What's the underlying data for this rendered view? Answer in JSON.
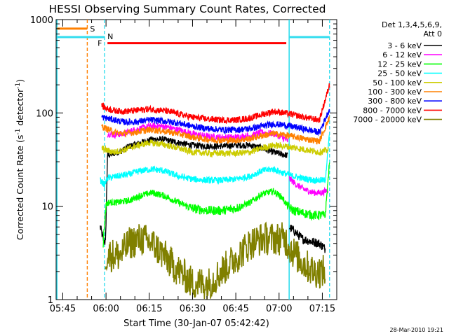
{
  "chart_data": {
    "type": "line",
    "title": "HESSI Observing Summary Count Rates, Corrected",
    "xlabel": "Start Time (30-Jan-07 05:42:42)",
    "ylabel_parts": [
      "Corrected Count Rate (s",
      "-1",
      " detector",
      "-1",
      ")"
    ],
    "x_unit": "UT",
    "xlim": [
      "05:42:42",
      "07:20:00"
    ],
    "ylim": [
      1,
      1000
    ],
    "y_scale": "log",
    "grid": false,
    "x_ticks": [
      "05:45",
      "06:00",
      "06:15",
      "06:30",
      "06:45",
      "07:00",
      "07:15"
    ],
    "y_ticks": [
      1,
      10,
      100,
      1000
    ],
    "y_tick_labels": [
      "1",
      "10",
      "100",
      "1000"
    ],
    "legend_header": [
      "Det 1,3,4,5,6,9,",
      "Att 0"
    ],
    "legend_position": "top-right outside",
    "series": [
      {
        "name": "3 - 6 keV",
        "color": "#000000",
        "segments": [
          {
            "t": [
              "05:58:00",
              "05:59:00",
              "05:59:50",
              "06:00:30",
              "06:02:00",
              "06:04:00",
              "06:06:00",
              "06:08:00",
              "06:12:00",
              "06:16:00",
              "06:20:00",
              "06:25:00",
              "06:30:00",
              "06:35:00",
              "06:40:00",
              "06:45:00",
              "06:50:00",
              "06:54:00",
              "06:58:00",
              "07:01:00",
              "07:03:00"
            ],
            "v": [
              6,
              4.5,
              4,
              35,
              36,
              38,
              40,
              44,
              48,
              52,
              52,
              48,
              45,
              44,
              44,
              45,
              45,
              42,
              38,
              36,
              35
            ]
          },
          {
            "t": [
              "07:03:30",
              "07:05:00",
              "07:08:00",
              "07:11:00",
              "07:14:00",
              "07:16:00"
            ],
            "v": [
              6,
              5.5,
              4.5,
              4.2,
              4,
              3.5
            ]
          }
        ]
      },
      {
        "name": "6 - 12 keV",
        "color": "#ff00ff",
        "segments": [
          {
            "t": [
              "06:00:30",
              "06:03:00",
              "06:06:00",
              "06:10:00",
              "06:15:00",
              "06:20:00",
              "06:25:00",
              "06:30:00",
              "06:35:00",
              "06:40:00",
              "06:45:00",
              "06:50:00",
              "06:54:00",
              "06:58:00",
              "07:01:00",
              "07:03:00"
            ],
            "v": [
              60,
              58,
              60,
              66,
              72,
              72,
              66,
              60,
              56,
              55,
              55,
              57,
              62,
              60,
              55,
              50
            ]
          },
          {
            "t": [
              "07:03:30",
              "07:06:00",
              "07:09:00",
              "07:12:00",
              "07:15:00",
              "07:17:00"
            ],
            "v": [
              20,
              17,
              15,
              14,
              14,
              15
            ]
          }
        ]
      },
      {
        "name": "12 - 25 keV",
        "color": "#00ff00",
        "segments": [
          {
            "t": [
              "05:59:00",
              "06:00:00",
              "06:01:00",
              "06:04:00",
              "06:08:00",
              "06:12:00",
              "06:16:00",
              "06:20:00",
              "06:25:00",
              "06:30:00",
              "06:35:00",
              "06:40:00",
              "06:45:00",
              "06:50:00",
              "06:54:00",
              "06:58:00",
              "07:01:00",
              "07:03:00",
              "07:05:00",
              "07:08:00",
              "07:12:00",
              "07:16:00",
              "07:17:30"
            ],
            "v": [
              4,
              10.5,
              11,
              11,
              11.5,
              13,
              14,
              13,
              11,
              9.5,
              9,
              9,
              9.5,
              11,
              13.5,
              14.5,
              12.5,
              10,
              9,
              8.5,
              8,
              8,
              30
            ]
          }
        ]
      },
      {
        "name": "25 - 50 keV",
        "color": "#00ffff",
        "segments": [
          {
            "t": [
              "05:58:00",
              "05:59:30",
              "06:00:30",
              "06:04:00",
              "06:08:00",
              "06:12:00",
              "06:16:00",
              "06:20:00",
              "06:25:00",
              "06:30:00",
              "06:35:00",
              "06:40:00",
              "06:45:00",
              "06:50:00",
              "06:54:00",
              "06:58:00",
              "07:01:00",
              "07:03:00",
              "07:05:00",
              "07:08:00",
              "07:12:00",
              "07:16:00",
              "07:17:30"
            ],
            "v": [
              19,
              17,
              20,
              21,
              22,
              24,
              25,
              24,
              21,
              19.5,
              19,
              19,
              19.5,
              21,
              24,
              25,
              23,
              22,
              21,
              20,
              19,
              19,
              60
            ]
          }
        ]
      },
      {
        "name": "50 - 100 keV",
        "color": "#cccc00",
        "segments": [
          {
            "t": [
              "05:58:30",
              "06:00:00",
              "06:03:00",
              "06:06:00",
              "06:10:00",
              "06:15:00",
              "06:20:00",
              "06:25:00",
              "06:30:00",
              "06:35:00",
              "06:40:00",
              "06:45:00",
              "06:50:00",
              "06:54:00",
              "06:58:00",
              "07:02:00",
              "07:06:00",
              "07:10:00",
              "07:14:00",
              "07:17:00"
            ],
            "v": [
              42,
              40,
              38,
              40,
              44,
              48,
              46,
              42,
              38,
              37,
              37,
              37,
              38,
              42,
              45,
              44,
              42,
              40,
              38,
              40
            ]
          }
        ]
      },
      {
        "name": "100 - 300 keV",
        "color": "#ff8000",
        "segments": [
          {
            "t": [
              "05:58:30",
              "06:00:00",
              "06:03:00",
              "06:06:00",
              "06:10:00",
              "06:15:00",
              "06:20:00",
              "06:25:00",
              "06:30:00",
              "06:35:00",
              "06:40:00",
              "06:45:00",
              "06:50:00",
              "06:54:00",
              "06:58:00",
              "07:02:00",
              "07:06:00",
              "07:10:00",
              "07:14:00",
              "07:17:30"
            ],
            "v": [
              72,
              68,
              62,
              60,
              62,
              66,
              64,
              60,
              55,
              52,
              51,
              51,
              53,
              57,
              60,
              58,
              55,
              52,
              50,
              90
            ]
          }
        ]
      },
      {
        "name": "300 - 800 keV",
        "color": "#0000ff",
        "segments": [
          {
            "t": [
              "05:58:30",
              "06:00:00",
              "06:03:00",
              "06:06:00",
              "06:10:00",
              "06:15:00",
              "06:20:00",
              "06:25:00",
              "06:30:00",
              "06:35:00",
              "06:40:00",
              "06:45:00",
              "06:50:00",
              "06:54:00",
              "06:58:00",
              "07:02:00",
              "07:06:00",
              "07:10:00",
              "07:14:00",
              "07:17:30"
            ],
            "v": [
              90,
              88,
              84,
              80,
              80,
              84,
              82,
              78,
              72,
              68,
              66,
              66,
              68,
              72,
              76,
              74,
              70,
              66,
              62,
              110
            ]
          }
        ]
      },
      {
        "name": "800 - 7000 keV",
        "color": "#ff0000",
        "segments": [
          {
            "t": [
              "05:58:30",
              "06:00:00",
              "06:03:00",
              "06:06:00",
              "06:10:00",
              "06:15:00",
              "06:20:00",
              "06:25:00",
              "06:30:00",
              "06:35:00",
              "06:40:00",
              "06:45:00",
              "06:50:00",
              "06:54:00",
              "06:58:00",
              "07:02:00",
              "07:06:00",
              "07:10:00",
              "07:14:00",
              "07:17:30"
            ],
            "v": [
              120,
              112,
              106,
              104,
              106,
              110,
              106,
              98,
              90,
              86,
              84,
              84,
              88,
              96,
              104,
              100,
              94,
              88,
              84,
              200
            ]
          }
        ]
      },
      {
        "name": "7000 - 20000 keV",
        "color": "#808000",
        "segments": [
          {
            "t": [
              "05:59:50",
              "06:00:00",
              "06:05:00",
              "06:08:00",
              "06:12:00",
              "06:16:00",
              "06:20:00",
              "06:24:00",
              "06:30:00",
              "06:36:00",
              "06:40:00",
              "06:46:00",
              "06:50:00",
              "06:54:00",
              "06:58:00",
              "07:02:00",
              "07:04:00",
              "07:08:00",
              "07:12:00",
              "07:16:00"
            ],
            "v": [
              2.5,
              3,
              3,
              4,
              4.5,
              4,
              3,
              2.2,
              1.5,
              1.5,
              2,
              3,
              4,
              4.5,
              4.5,
              4.5,
              3.5,
              2.5,
              2,
              2
            ]
          }
        ]
      }
    ],
    "annotations": [
      {
        "label": "S",
        "color": "#ff8000",
        "kind": "dashed vertical line",
        "t": "05:53:30"
      },
      {
        "label": "N",
        "color": "#33ddee",
        "kind": "dashed vertical line",
        "t": "05:59:30"
      },
      {
        "label": "F",
        "color": "#ff0000",
        "kind": "horizontal bar",
        "t_start": "06:00:30",
        "t_end": "07:02:30"
      }
    ],
    "bands": [
      {
        "name": "S",
        "color": "#ff8000",
        "t_start": "05:43:00",
        "t_end": "05:53:30",
        "level": 800
      },
      {
        "name": "N",
        "color": "#33ddee",
        "t_start": "05:43:00",
        "t_end": "05:59:30",
        "level": 650
      },
      {
        "name": "N",
        "color": "#33ddee",
        "t_start": "07:03:30",
        "t_end": "07:17:30",
        "level": 650
      }
    ],
    "eclipse_lines": [
      {
        "t": "05:43:00",
        "color": "#33ddee"
      },
      {
        "t": "07:03:30",
        "color": "#33ddee"
      }
    ],
    "eclipse_dashed": [
      {
        "t": "07:17:30",
        "color": "#33ddee"
      }
    ],
    "footer_date": "28-Mar-2010 19:21"
  }
}
